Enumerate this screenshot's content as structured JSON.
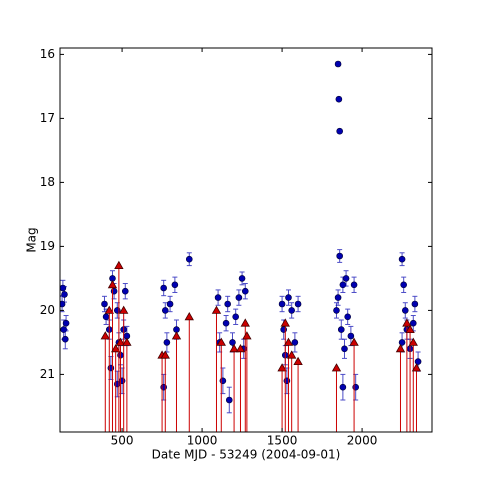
{
  "chart_data": {
    "type": "scatter",
    "xlabel": "Date MJD - 53249 (2004-09-01)",
    "ylabel": "Mag",
    "xlim": [
      112,
      2437
    ],
    "ylim": [
      15.9,
      21.9
    ],
    "y_inverted": true,
    "xticks": [
      500,
      1000,
      1500,
      2000
    ],
    "yticks": [
      16,
      17,
      18,
      19,
      20,
      21
    ],
    "series": [
      {
        "color": "#0000b0",
        "marker": "circle",
        "x": [
          130,
          140,
          125,
          135,
          150,
          145,
          390,
          400,
          420,
          440,
          450,
          470,
          480,
          490,
          500,
          510,
          520,
          530,
          470,
          430,
          760,
          770,
          780,
          760,
          800,
          830,
          840,
          920,
          1100,
          1110,
          1130,
          1150,
          1160,
          1170,
          1190,
          1210,
          1230,
          1250,
          1260,
          1270,
          1500,
          1510,
          1520,
          1540,
          1560,
          1580,
          1600,
          1530,
          1850,
          1855,
          1860,
          1860,
          1850,
          1870,
          1880,
          1890,
          1900,
          1910,
          1930,
          1950,
          1880,
          1960,
          1840,
          2250,
          2260,
          2270,
          2280,
          2300,
          2320,
          2330,
          2350,
          2250
        ],
        "values": [
          19.65,
          19.75,
          19.9,
          20.3,
          20.2,
          20.45,
          19.9,
          20.1,
          20.3,
          19.5,
          19.7,
          20.0,
          20.5,
          20.7,
          21.1,
          20.3,
          19.7,
          20.4,
          21.15,
          20.9,
          19.65,
          20.0,
          20.5,
          21.2,
          19.9,
          19.6,
          20.3,
          19.2,
          19.8,
          20.5,
          21.1,
          20.2,
          19.9,
          21.4,
          20.5,
          20.1,
          19.8,
          19.5,
          20.6,
          19.7,
          19.9,
          20.3,
          20.7,
          19.8,
          20.0,
          20.5,
          19.9,
          21.1,
          16.15,
          16.7,
          17.2,
          19.15,
          19.8,
          20.3,
          19.6,
          20.6,
          19.5,
          20.1,
          20.4,
          19.6,
          21.2,
          21.2,
          20.0,
          19.2,
          19.6,
          20.0,
          20.3,
          20.6,
          20.2,
          19.9,
          20.8,
          20.5
        ],
        "errors": [
          0.12,
          0.12,
          0.12,
          0.15,
          0.12,
          0.15,
          0.12,
          0.12,
          0.15,
          0.12,
          0.12,
          0.12,
          0.15,
          0.15,
          0.2,
          0.15,
          0.12,
          0.15,
          0.2,
          0.18,
          0.12,
          0.12,
          0.15,
          0.2,
          0.12,
          0.12,
          0.15,
          0.1,
          0.12,
          0.15,
          0.2,
          0.12,
          0.12,
          0.2,
          0.15,
          0.12,
          0.12,
          0.1,
          0.15,
          0.12,
          0.12,
          0.15,
          0.15,
          0.12,
          0.12,
          0.15,
          0.12,
          0.2,
          0.03,
          0.03,
          0.03,
          0.1,
          0.12,
          0.15,
          0.12,
          0.15,
          0.12,
          0.12,
          0.15,
          0.12,
          0.2,
          0.2,
          0.12,
          0.1,
          0.12,
          0.12,
          0.15,
          0.15,
          0.12,
          0.12,
          0.15,
          0.15
        ]
      },
      {
        "color": "#cc0000",
        "marker": "triangle",
        "drop_lines": true,
        "x": [
          395,
          420,
          440,
          460,
          480,
          490,
          510,
          530,
          750,
          770,
          840,
          920,
          1090,
          1120,
          1200,
          1240,
          1270,
          1280,
          1500,
          1520,
          1540,
          1560,
          1600,
          1840,
          1950,
          2240,
          2280,
          2300,
          2320,
          2340
        ],
        "values": [
          20.4,
          20.0,
          19.6,
          20.6,
          19.3,
          20.5,
          20.0,
          20.5,
          20.7,
          20.7,
          20.4,
          20.1,
          20.0,
          20.5,
          20.6,
          20.6,
          20.2,
          20.4,
          20.9,
          20.2,
          20.5,
          20.7,
          20.8,
          20.9,
          20.5,
          20.6,
          20.2,
          20.3,
          20.5,
          20.9
        ]
      }
    ]
  }
}
